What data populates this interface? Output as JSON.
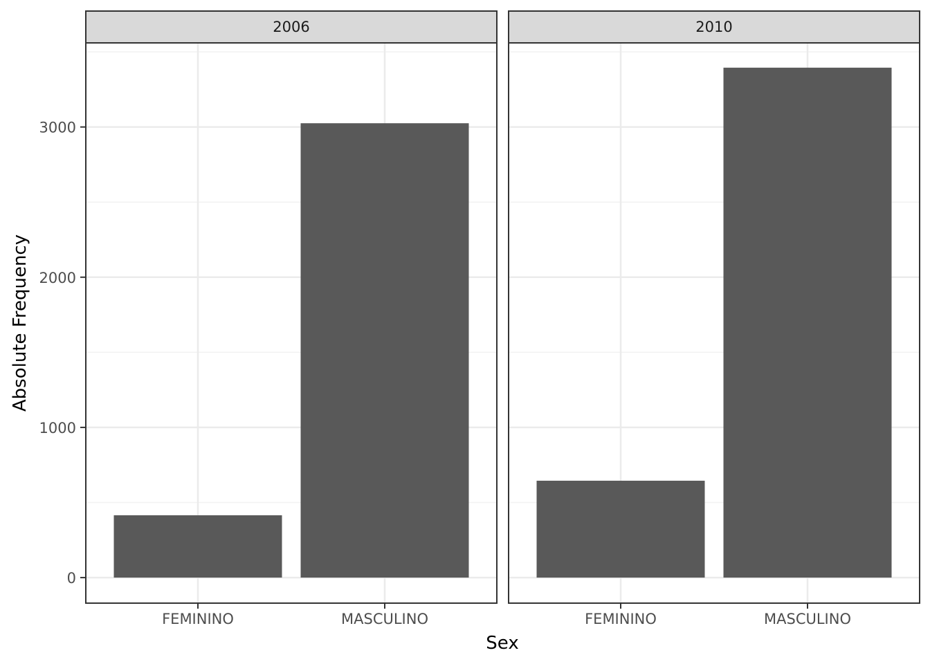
{
  "chart_data": {
    "type": "bar",
    "facet_by": "year",
    "facets": [
      {
        "label": "2006",
        "categories": [
          "FEMININO",
          "MASCULINO"
        ],
        "values": [
          415,
          3025
        ]
      },
      {
        "label": "2010",
        "categories": [
          "FEMININO",
          "MASCULINO"
        ],
        "values": [
          645,
          3395
        ]
      }
    ],
    "xlabel": "Sex",
    "ylabel": "Absolute Frequency",
    "ylim": [
      -170,
      3560
    ],
    "yticks": [
      0,
      1000,
      2000,
      3000
    ],
    "yminor": [
      500,
      1500,
      2500,
      3500
    ],
    "grid": true,
    "legend": "none",
    "colors": {
      "bar": "#595959",
      "strip_fill": "#d9d9d9",
      "panel_border": "#333333",
      "grid_major": "#ebebeb",
      "grid_minor": "#f2f2f2"
    }
  }
}
